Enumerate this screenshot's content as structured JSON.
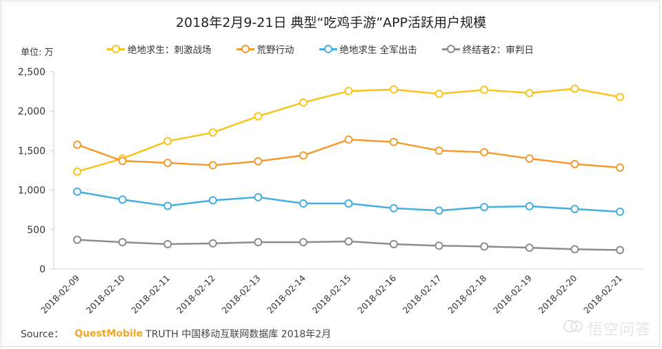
{
  "title": "2018年2月9-21日 典型“吃鸡手游”APP活跃用户规模",
  "unit_label": "单位: 万",
  "source": {
    "label": "Source：",
    "brand": "QuestMobile",
    "text": "TRUTH 中国移动互联网数据库 2018年2月"
  },
  "watermark": {
    "text": "悟空问答"
  },
  "chart_data": {
    "type": "line",
    "x": [
      "2018-02-09",
      "2018-02-10",
      "2018-02-11",
      "2018-02-12",
      "2018-02-13",
      "2018-02-14",
      "2018-02-15",
      "2018-02-16",
      "2018-02-17",
      "2018-02-18",
      "2018-02-19",
      "2018-02-20",
      "2018-02-21"
    ],
    "ylim": [
      0,
      2500
    ],
    "yticks": [
      0,
      500,
      1000,
      1500,
      2000,
      2500
    ],
    "ytick_labels": [
      "0",
      "500",
      "1,000",
      "1,500",
      "2,000",
      "2,500"
    ],
    "grid": false,
    "legend_position": "top",
    "series": [
      {
        "name": "绝地求生：刺激战场",
        "color": "#f9c31b",
        "values": [
          1235,
          1400,
          1620,
          1730,
          1935,
          2110,
          2255,
          2275,
          2220,
          2270,
          2230,
          2285,
          2180
        ]
      },
      {
        "name": "荒野行动",
        "color": "#f39a2c",
        "values": [
          1575,
          1370,
          1345,
          1315,
          1365,
          1440,
          1640,
          1610,
          1500,
          1480,
          1400,
          1330,
          1285
        ]
      },
      {
        "name": "绝地求生 全军出击",
        "color": "#43aedf",
        "values": [
          980,
          880,
          800,
          870,
          910,
          830,
          830,
          770,
          740,
          785,
          795,
          760,
          725
        ]
      },
      {
        "name": "终结者2：审判日",
        "color": "#8c8c8c",
        "values": [
          370,
          340,
          315,
          325,
          340,
          340,
          350,
          315,
          295,
          285,
          270,
          250,
          240
        ]
      }
    ]
  }
}
